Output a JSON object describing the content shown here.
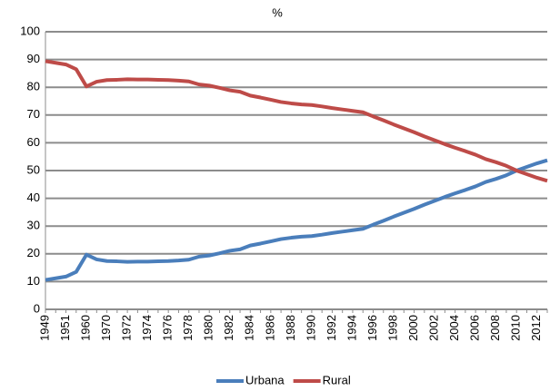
{
  "chart_data": {
    "type": "line",
    "title": "%",
    "categories": [
      "1949",
      null,
      "1951",
      null,
      "1960",
      null,
      "1970",
      null,
      "1972",
      null,
      "1974",
      null,
      "1976",
      null,
      "1978",
      null,
      "1980",
      null,
      "1982",
      null,
      "1984",
      null,
      "1986",
      null,
      "1988",
      null,
      "1990",
      null,
      "1992",
      null,
      "1994",
      null,
      "1996",
      null,
      "1998",
      null,
      "2000",
      null,
      "2002",
      null,
      "2004",
      null,
      "2006",
      null,
      "2008",
      null,
      "2010",
      null,
      "2012",
      null
    ],
    "series": [
      {
        "name": "Urbana",
        "color": "#4a7ebb",
        "values": [
          10.6,
          11.2,
          11.8,
          13.5,
          19.7,
          18.0,
          17.4,
          17.3,
          17.1,
          17.2,
          17.2,
          17.3,
          17.4,
          17.6,
          17.9,
          19.0,
          19.4,
          20.2,
          21.1,
          21.6,
          23.0,
          23.7,
          24.5,
          25.3,
          25.8,
          26.2,
          26.4,
          26.9,
          27.5,
          28.0,
          28.5,
          29.0,
          30.5,
          31.9,
          33.4,
          34.8,
          36.2,
          37.7,
          39.1,
          40.5,
          41.8,
          43.0,
          44.3,
          45.9,
          47.0,
          48.3,
          50.0,
          51.3,
          52.6,
          53.7
        ]
      },
      {
        "name": "Rural",
        "color": "#be4b48",
        "values": [
          89.4,
          88.8,
          88.2,
          86.5,
          80.3,
          82.0,
          82.6,
          82.7,
          82.9,
          82.8,
          82.8,
          82.7,
          82.6,
          82.4,
          82.1,
          81.0,
          80.6,
          79.8,
          78.9,
          78.4,
          77.0,
          76.3,
          75.5,
          74.7,
          74.2,
          73.8,
          73.6,
          73.1,
          72.5,
          72.0,
          71.5,
          71.0,
          69.5,
          68.1,
          66.6,
          65.2,
          63.8,
          62.3,
          60.9,
          59.5,
          58.2,
          57.0,
          55.7,
          54.1,
          53.0,
          51.7,
          50.0,
          48.7,
          47.4,
          46.3
        ]
      }
    ],
    "ylim": [
      0,
      100
    ],
    "yticks": [
      0,
      10,
      20,
      30,
      40,
      50,
      60,
      70,
      80,
      90,
      100
    ],
    "grid": true,
    "legend": "bottom"
  }
}
